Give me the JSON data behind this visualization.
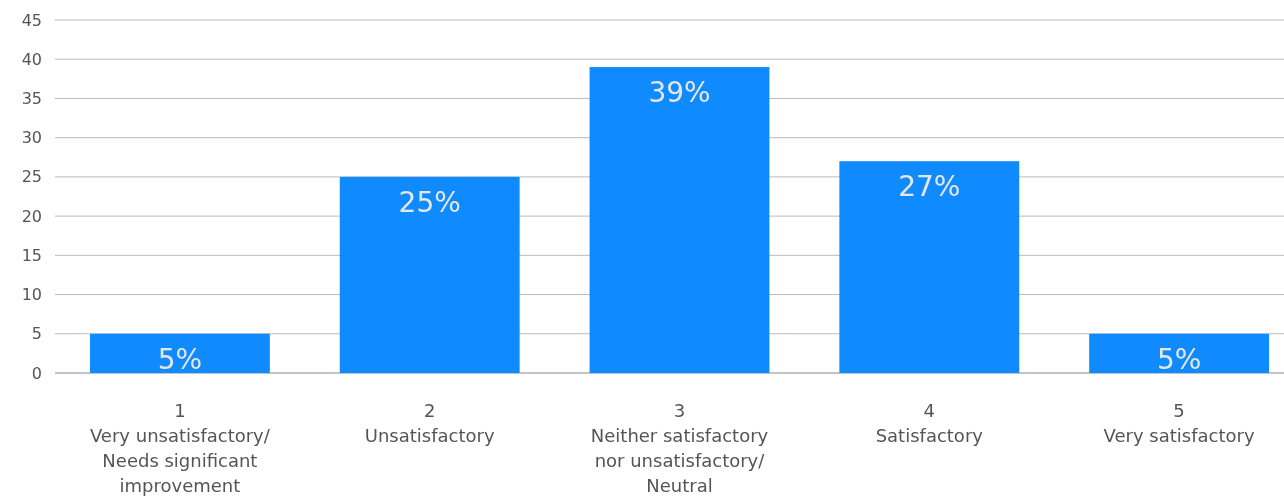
{
  "chart_data": {
    "type": "bar",
    "categories": [
      "1\nVery unsatisfactory/\nNeeds significant\nimprovement",
      "2\nUnsatisfactory",
      "3\nNeither satisfactory\nnor unsatisfactory/\nNeutral",
      "4\nSatisfactory",
      "5\nVery satisfactory"
    ],
    "values": [
      5,
      25,
      39,
      27,
      5
    ],
    "value_labels": [
      "5%",
      "25%",
      "39%",
      "27%",
      "5%"
    ],
    "color": "#0f8bff",
    "ylim": [
      0,
      45
    ],
    "yticks": [
      0,
      5,
      10,
      15,
      20,
      25,
      30,
      35,
      40,
      45
    ],
    "grid": "y"
  }
}
